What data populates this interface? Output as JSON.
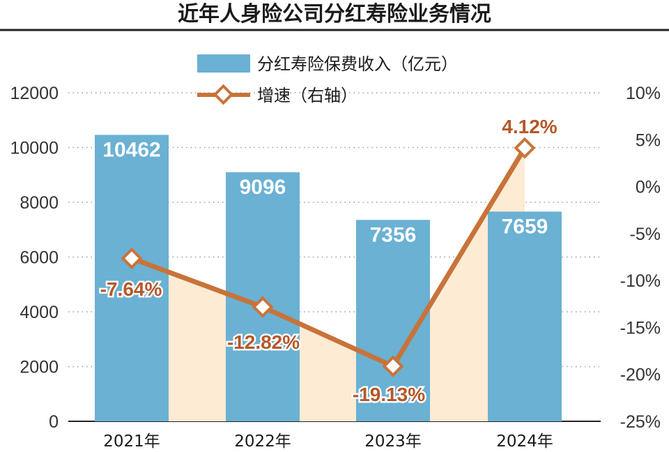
{
  "chart_data": {
    "type": "bar",
    "title": "近年人身险公司分红寿险业务情况",
    "categories": [
      "2021年",
      "2022年",
      "2023年",
      "2024年"
    ],
    "series": [
      {
        "name": "分红寿险保费收入（亿元）",
        "type": "bar",
        "axis": "left",
        "values": [
          10462,
          9096,
          7356,
          7659
        ],
        "labels": [
          "10462",
          "9096",
          "7356",
          "7659"
        ],
        "color": "#6ab1d3"
      },
      {
        "name": "增速（右轴）",
        "type": "line",
        "axis": "right",
        "values": [
          -7.64,
          -12.82,
          -19.13,
          4.12
        ],
        "labels": [
          "-7.64%",
          "-12.82%",
          "-19.13%",
          "4.12%"
        ],
        "color": "#c8733a"
      }
    ],
    "y_left": {
      "ylim": [
        0,
        12000
      ],
      "ticks": [
        0,
        2000,
        4000,
        6000,
        8000,
        10000,
        12000
      ],
      "tick_labels": [
        "0",
        "2000",
        "4000",
        "6000",
        "8000",
        "10000",
        "12000"
      ]
    },
    "y_right": {
      "ylim": [
        -25,
        10
      ],
      "ticks": [
        -25,
        -20,
        -15,
        -10,
        -5,
        0,
        5,
        10
      ],
      "tick_labels": [
        "-25%",
        "-20%",
        "-15%",
        "-10%",
        "-5%",
        "0%",
        "5%",
        "10%"
      ]
    },
    "grid": true,
    "legend_position": "top-center",
    "area_fill_color": "#fdebd4"
  }
}
